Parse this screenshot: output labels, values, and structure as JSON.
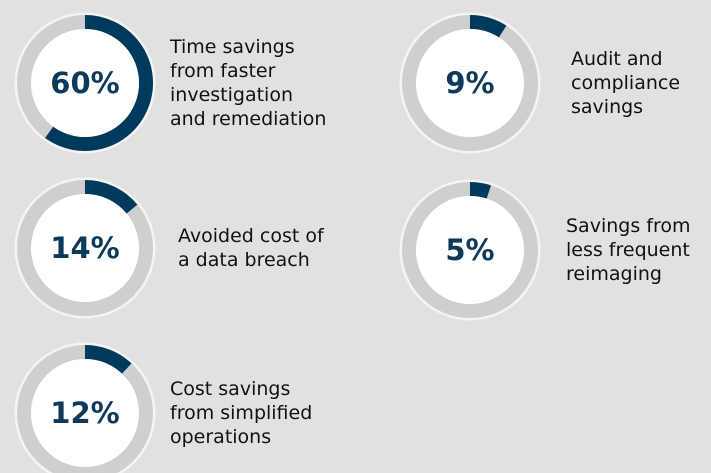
{
  "chart_data": [
    {
      "type": "gauge",
      "values": [
        60
      ],
      "value_labels": [
        "60%"
      ],
      "label": "Time savings\nfrom faster\ninvestigation\nand remediation",
      "color": "#003a5d"
    },
    {
      "type": "gauge",
      "values": [
        9
      ],
      "value_labels": [
        "9%"
      ],
      "label": "Audit and\ncompliance\nsavings",
      "color": "#003a5d"
    },
    {
      "type": "gauge",
      "values": [
        14
      ],
      "value_labels": [
        "14%"
      ],
      "label": "Avoided cost of\na data breach",
      "color": "#003a5d"
    },
    {
      "type": "gauge",
      "values": [
        5
      ],
      "value_labels": [
        "5%"
      ],
      "label": "Savings from\nless frequent\nreimaging",
      "color": "#003a5d"
    },
    {
      "type": "gauge",
      "values": [
        12
      ],
      "value_labels": [
        "12%"
      ],
      "label": "Cost savings\nfrom simplified\noperations",
      "color": "#003a5d"
    }
  ]
}
